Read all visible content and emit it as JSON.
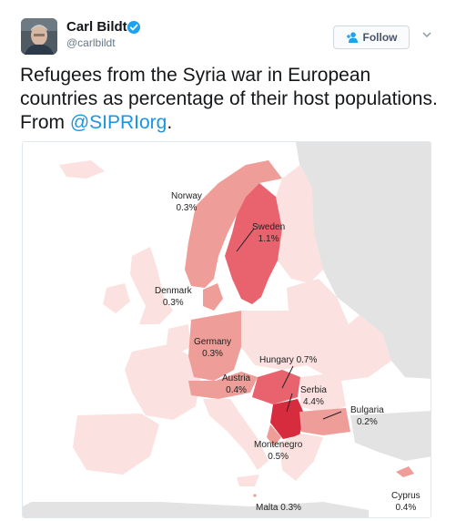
{
  "author": {
    "name": "Carl Bildt",
    "handle": "@carlbildt",
    "verified": true
  },
  "actions": {
    "follow_label": "Follow"
  },
  "tweet": {
    "text_before": "Refugees from the Syria war in European countries as percentage of their host populations. From ",
    "mention": "@SIPRIorg",
    "text_after": "."
  },
  "map": {
    "labels": {
      "norway_name": "Norway",
      "norway_value": "0.3%",
      "sweden_name": "Sweden",
      "sweden_value": "1.1%",
      "denmark_name": "Denmark",
      "denmark_value": "0.3%",
      "germany_name": "Germany",
      "germany_value": "0.3%",
      "hungary": "Hungary 0.7%",
      "austria_name": "Austria",
      "austria_value": "0.4%",
      "serbia_name": "Serbia",
      "serbia_value": "4.4%",
      "bulgaria_name": "Bulgaria",
      "bulgaria_value": "0.2%",
      "montenegro_name": "Montenegro",
      "montenegro_value": "0.5%",
      "malta": "Malta 0.3%",
      "cyprus_name": "Cyprus",
      "cyprus_value": "0.4%"
    },
    "colors": {
      "sea": "#ffffff",
      "land_light": "#fbe1df",
      "land_medium": "#ee9d98",
      "land_strong": "#e9636f",
      "land_darkest": "#d72c3e",
      "non_europe": "#e3e3e3"
    }
  }
}
